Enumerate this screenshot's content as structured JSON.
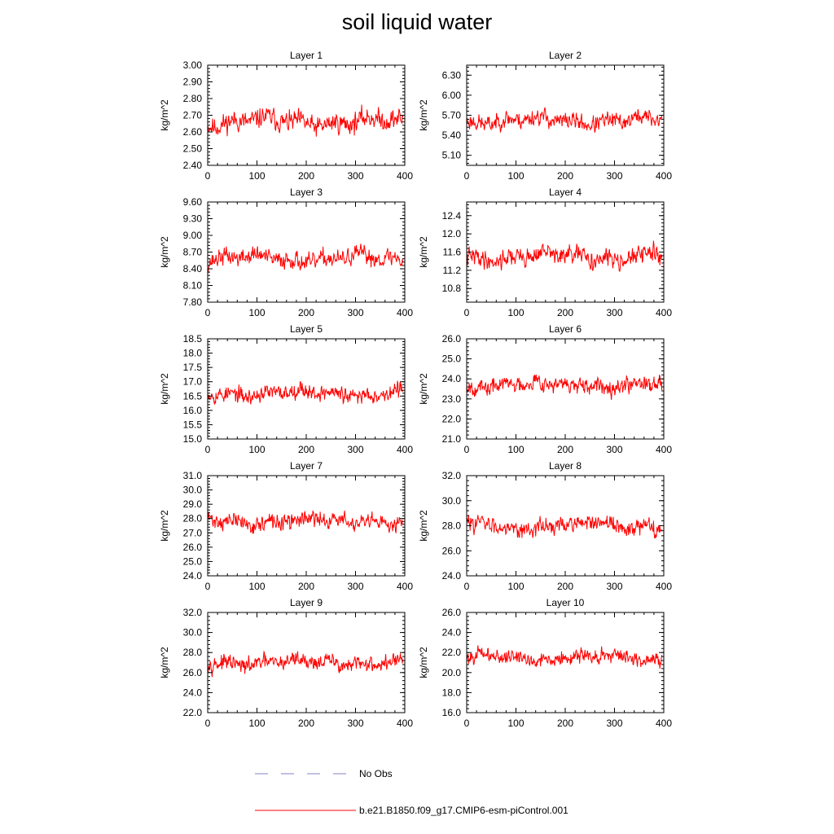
{
  "title": "soil liquid water",
  "colors": {
    "series": "#ff0000",
    "obs": "#8080c0",
    "axis": "#000000"
  },
  "legend": {
    "entries": [
      {
        "label": "No Obs",
        "style": "dashed",
        "color": "#8080c0"
      },
      {
        "label": "b.e21.B1850.f09_g17.CMIP6-esm-piControl.001",
        "style": "solid",
        "color": "#ff0000"
      }
    ]
  },
  "chart_data": [
    {
      "type": "line",
      "title": "Layer 1",
      "ylabel": "kg/m^2",
      "xlim": [
        0,
        400
      ],
      "xticks": [
        0,
        100,
        200,
        300,
        400
      ],
      "ylim": [
        2.4,
        3.0
      ],
      "yticks": [
        "2.40",
        "2.50",
        "2.60",
        "2.70",
        "2.80",
        "2.90",
        "3.00"
      ],
      "series_name": "b.e21.B1850.f09_g17.CMIP6-esm-piControl.001",
      "mean": 2.66,
      "amplitude": 0.24,
      "seed": 11,
      "n": 400
    },
    {
      "type": "line",
      "title": "Layer 2",
      "ylabel": "kg/m^2",
      "xlim": [
        0,
        400
      ],
      "xticks": [
        0,
        100,
        200,
        300,
        400
      ],
      "ylim": [
        4.95,
        6.45
      ],
      "yticks": [
        "5.10",
        "5.40",
        "5.70",
        "6.00",
        "6.30"
      ],
      "series_name": "b.e21.B1850.f09_g17.CMIP6-esm-piControl.001",
      "mean": 5.62,
      "amplitude": 0.5,
      "seed": 23,
      "n": 400
    },
    {
      "type": "line",
      "title": "Layer 3",
      "ylabel": "kg/m^2",
      "xlim": [
        0,
        400
      ],
      "xticks": [
        0,
        100,
        200,
        300,
        400
      ],
      "ylim": [
        7.8,
        9.6
      ],
      "yticks": [
        "7.80",
        "8.10",
        "8.40",
        "8.70",
        "9.00",
        "9.30",
        "9.60"
      ],
      "series_name": "b.e21.B1850.f09_g17.CMIP6-esm-piControl.001",
      "mean": 8.58,
      "amplitude": 0.62,
      "seed": 37,
      "n": 400
    },
    {
      "type": "line",
      "title": "Layer 4",
      "ylabel": "kg/m^2",
      "xlim": [
        0,
        400
      ],
      "xticks": [
        0,
        100,
        200,
        300,
        400
      ],
      "ylim": [
        10.5,
        12.7
      ],
      "yticks": [
        "10.8",
        "11.2",
        "11.6",
        "12.0",
        "12.4"
      ],
      "series_name": "b.e21.B1850.f09_g17.CMIP6-esm-piControl.001",
      "mean": 11.5,
      "amplitude": 0.78,
      "seed": 41,
      "n": 400
    },
    {
      "type": "line",
      "title": "Layer 5",
      "ylabel": "kg/m^2",
      "xlim": [
        0,
        400
      ],
      "xticks": [
        0,
        100,
        200,
        300,
        400
      ],
      "ylim": [
        15.0,
        18.5
      ],
      "yticks": [
        "15.0",
        "15.5",
        "16.0",
        "16.5",
        "17.0",
        "17.5",
        "18.0",
        "18.5"
      ],
      "series_name": "b.e21.B1850.f09_g17.CMIP6-esm-piControl.001",
      "mean": 16.6,
      "amplitude": 1.1,
      "seed": 53,
      "n": 400
    },
    {
      "type": "line",
      "title": "Layer 6",
      "ylabel": "kg/m^2",
      "xlim": [
        0,
        400
      ],
      "xticks": [
        0,
        100,
        200,
        300,
        400
      ],
      "ylim": [
        21.0,
        26.0
      ],
      "yticks": [
        "21.0",
        "22.0",
        "23.0",
        "24.0",
        "25.0",
        "26.0"
      ],
      "series_name": "b.e21.B1850.f09_g17.CMIP6-esm-piControl.001",
      "mean": 23.7,
      "amplitude": 1.6,
      "seed": 67,
      "n": 400
    },
    {
      "type": "line",
      "title": "Layer 7",
      "ylabel": "kg/m^2",
      "xlim": [
        0,
        400
      ],
      "xticks": [
        0,
        100,
        200,
        300,
        400
      ],
      "ylim": [
        24.0,
        31.0
      ],
      "yticks": [
        "24.0",
        "25.0",
        "26.0",
        "27.0",
        "28.0",
        "29.0",
        "30.0",
        "31.0"
      ],
      "series_name": "b.e21.B1850.f09_g17.CMIP6-esm-piControl.001",
      "mean": 27.8,
      "amplitude": 2.2,
      "seed": 71,
      "n": 400
    },
    {
      "type": "line",
      "title": "Layer 8",
      "ylabel": "kg/m^2",
      "xlim": [
        0,
        400
      ],
      "xticks": [
        0,
        100,
        200,
        300,
        400
      ],
      "ylim": [
        24.0,
        32.0
      ],
      "yticks": [
        "24.0",
        "26.0",
        "28.0",
        "30.0",
        "32.0"
      ],
      "series_name": "b.e21.B1850.f09_g17.CMIP6-esm-piControl.001",
      "mean": 28.0,
      "amplitude": 2.6,
      "seed": 83,
      "n": 400
    },
    {
      "type": "line",
      "title": "Layer 9",
      "ylabel": "kg/m^2",
      "xlim": [
        0,
        400
      ],
      "xticks": [
        0,
        100,
        200,
        300,
        400
      ],
      "ylim": [
        22.0,
        32.0
      ],
      "yticks": [
        "22.0",
        "24.0",
        "26.0",
        "28.0",
        "30.0",
        "32.0"
      ],
      "series_name": "b.e21.B1850.f09_g17.CMIP6-esm-piControl.001",
      "mean": 27.0,
      "amplitude": 3.0,
      "seed": 97,
      "n": 400
    },
    {
      "type": "line",
      "title": "Layer 10",
      "ylabel": "kg/m^2",
      "xlim": [
        0,
        400
      ],
      "xticks": [
        0,
        100,
        200,
        300,
        400
      ],
      "ylim": [
        16.0,
        26.0
      ],
      "yticks": [
        "16.0",
        "18.0",
        "20.0",
        "22.0",
        "24.0",
        "26.0"
      ],
      "series_name": "b.e21.B1850.f09_g17.CMIP6-esm-piControl.001",
      "mean": 21.5,
      "amplitude": 2.8,
      "seed": 101,
      "n": 400
    }
  ]
}
